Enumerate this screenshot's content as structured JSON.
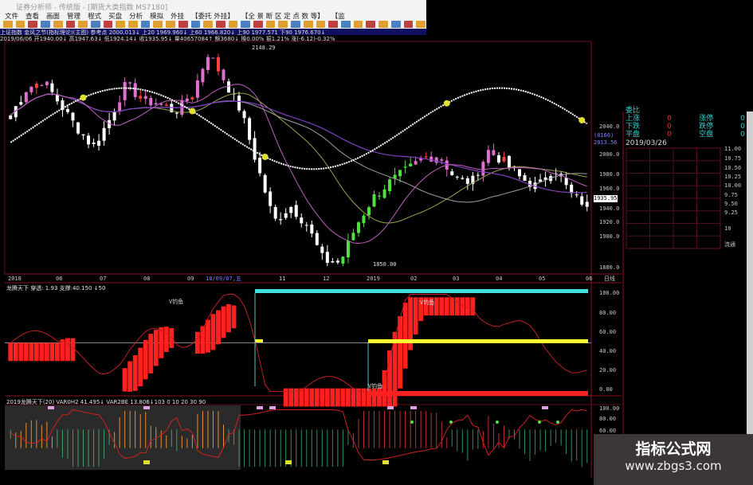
{
  "window": {
    "title": "证券分析师 - 传统版 - [期货大类指数 MS7180]"
  },
  "menu": [
    "文件",
    "查看",
    "画面",
    "管理",
    "程式",
    "买盘",
    "分析",
    "模拟",
    "外挂",
    "【委托 外挂】",
    "【全 景 断 区 定 点 数 等】",
    "【监"
  ],
  "info": {
    "line1": "上证指数  金风之节(指标理论)(主图)  参考点 2000.013↓ 上20 1969.960↓ 上60 1966.820↓ 上90 1977.571  下90 1976.670↓",
    "line2": "2019/06/06 开1940.00↓ 高1947.63↓ 低1924.14↓ 收1935.95↓ 量40657084↑ 额3680↓ 换0.00% 振1.21% 涨(-6.12)-0.32%"
  },
  "chart_data": {
    "type": "candlestick",
    "price_axis": {
      "ticks": [
        "2040.0",
        "2000.0",
        "1980.0",
        "1960.0",
        "1940.0",
        "1920.0",
        "1900.0",
        "1880.0"
      ],
      "range": [
        1845,
        2155
      ]
    },
    "annotations": {
      "high": "2148.29",
      "low": "1850.00",
      "current": "1935.95",
      "cursor_price": "2013.56",
      "cursor_code": "(8166)"
    },
    "time_axis": [
      "2018",
      "06",
      "07",
      "08",
      "09",
      "11",
      "12",
      "2019",
      "02",
      "03",
      "04",
      "05",
      "06"
    ],
    "cursor_date": "18/09/07,五",
    "period": "日线",
    "key_closes": [
      2058,
      2095,
      2105,
      2073,
      2042,
      2015,
      2052,
      2100,
      2079,
      2073,
      2063,
      2084,
      2143,
      2105,
      2063,
      1988,
      1914,
      1935,
      1909,
      1861,
      1858,
      1909,
      1946,
      1967,
      1983,
      1999,
      2004,
      1972,
      1967,
      2010,
      1994,
      1972,
      1961,
      1988,
      1951,
      1936
    ],
    "colors": {
      "up": "#e070d0",
      "down": "#ffffff",
      "recover": "#50e040",
      "hot": "#ff4040"
    }
  },
  "panel1": {
    "label": "龙腾天下 穿透: 1.93 支撑:40.150 ↓50",
    "ticks": [
      "100.00",
      "80.00",
      "60.00",
      "40.00",
      "20.00",
      "0.00"
    ],
    "marks": [
      "V钓鱼",
      "V钓鱼",
      "V钓鱼"
    ],
    "colors": {
      "rise": "#ff2020",
      "fall": "#40e0e0",
      "mid": "#ffff30"
    }
  },
  "panel2": {
    "label": "2019龙腾天下(20) VAR0H2 41.495↓ VAR2BE 13.806↓103 0 10 20 30 90",
    "ticks": [
      "100.00",
      "80.00",
      "60.00"
    ]
  },
  "right_panel": {
    "rows": [
      {
        "label": "委比",
        "value": "",
        "label2": "",
        "value2": ""
      },
      {
        "label": "上涨",
        "value": "0",
        "label2": "涨停",
        "value2": "0"
      },
      {
        "label": "下跌",
        "value": "0",
        "label2": "跌停",
        "value2": "0"
      },
      {
        "label": "平盘",
        "value": "0",
        "label2": "空盘",
        "value2": "0"
      }
    ],
    "date": "2019/03/26",
    "scale": [
      "11.00",
      "10.75",
      "10.50",
      "10.25",
      "10.00",
      "9.75",
      "9.50",
      "9.25",
      "10",
      "流通"
    ]
  },
  "watermark": {
    "title": "指标公式网",
    "url": "www.zbgs3.com"
  }
}
